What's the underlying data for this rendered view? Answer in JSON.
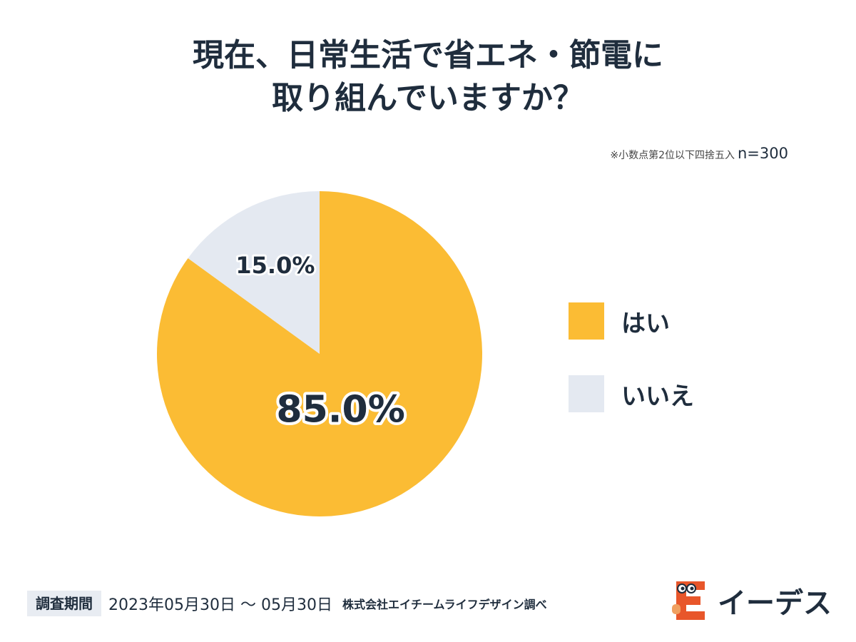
{
  "title": {
    "line1": "現在、日常生活で省エネ・節電に",
    "line2": "取り組んでいますか？"
  },
  "note": {
    "rounding": "※小数点第2位以下四捨五入",
    "sample": "n=300"
  },
  "chart_data": {
    "type": "pie",
    "title": "現在、日常生活で省エネ・節電に取り組んでいますか？",
    "categories": [
      "はい",
      "いいえ"
    ],
    "values": [
      85.0,
      15.0
    ],
    "value_labels": [
      "85.0%",
      "15.0%"
    ],
    "colors": [
      "#fbbc34",
      "#e4e9f1"
    ],
    "legend_position": "right",
    "start": "12 o'clock, clockwise"
  },
  "legend": {
    "items": [
      {
        "label": "はい",
        "color": "#fbbc34"
      },
      {
        "label": "いいえ",
        "color": "#e4e9f1"
      }
    ]
  },
  "footer": {
    "period_tag": "調査期間",
    "period": "2023年05月30日 〜 05月30日",
    "credit": "株式会社エイチームライフデザイン調べ"
  },
  "logo": {
    "text": "イーデス",
    "icon": "e-mascot-icon",
    "color": "#e8562a"
  }
}
